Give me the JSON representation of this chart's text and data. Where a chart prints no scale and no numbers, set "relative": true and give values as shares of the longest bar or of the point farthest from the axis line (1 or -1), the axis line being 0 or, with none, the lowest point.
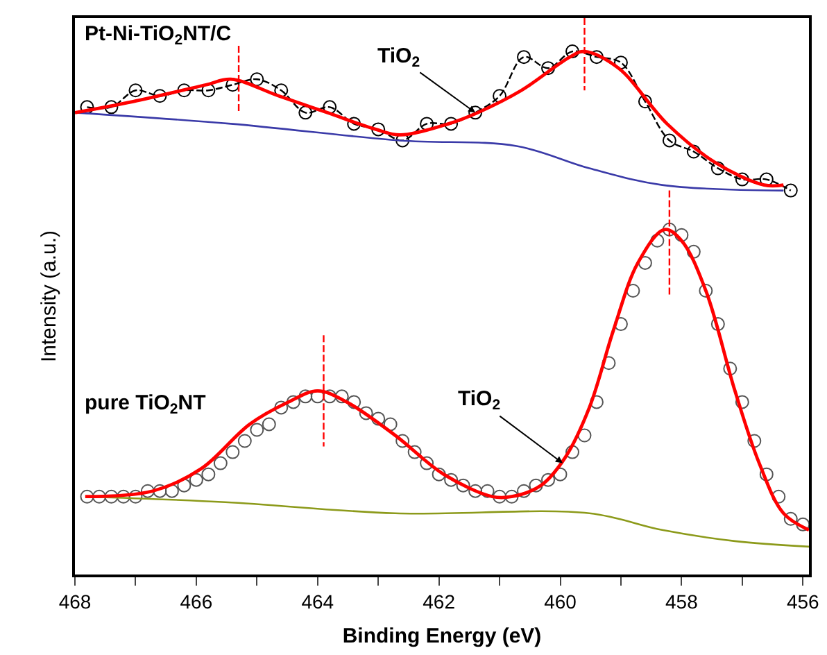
{
  "chart_data": {
    "type": "line",
    "relative": true,
    "xlabel": "Binding Energy (eV)",
    "ylabel": "Intensity (a.u.)",
    "xlim": [
      468,
      455.9
    ],
    "xticks": [
      468,
      {
        "value": 467,
        "label": null
      },
      466,
      {
        "value": 465,
        "label": null
      },
      464,
      {
        "value": 463,
        "label": null
      },
      462,
      {
        "value": 461,
        "label": null
      },
      460,
      {
        "value": 459,
        "label": null
      },
      458,
      {
        "value": 457,
        "label": null
      },
      456
    ],
    "legend": false,
    "series": [
      {
        "name": "Pt-Ni-TiO$_{2}$NT/C",
        "marker": "circle",
        "line_style": "dashed",
        "color": "#000000",
        "x": [
          467.8,
          467.4,
          467.0,
          466.6,
          466.2,
          465.8,
          465.4,
          465.0,
          464.6,
          464.2,
          463.8,
          463.4,
          463.0,
          462.6,
          462.2,
          461.8,
          461.4,
          461.0,
          460.6,
          460.2,
          459.8,
          459.4,
          459.0,
          458.6,
          458.2,
          457.8,
          457.4,
          457.0,
          456.6,
          456.2
        ],
        "values": [
          0.84,
          0.84,
          0.87,
          0.86,
          0.87,
          0.87,
          0.88,
          0.89,
          0.87,
          0.83,
          0.84,
          0.81,
          0.8,
          0.78,
          0.81,
          0.81,
          0.83,
          0.86,
          0.93,
          0.91,
          0.94,
          0.93,
          0.92,
          0.85,
          0.78,
          0.76,
          0.73,
          0.71,
          0.71,
          0.69
        ]
      },
      {
        "marker": "none",
        "line_style": "solid",
        "color": "#3a3aa8",
        "x": [
          468.0,
          465.43,
          462.64,
          460.72,
          459.52,
          458.32,
          456.32
        ],
        "values": [
          0.83,
          0.81,
          0.78,
          0.77,
          0.73,
          0.7,
          0.69
        ]
      },
      {
        "marker": "none",
        "line_style": "solid",
        "color": "#ff0000",
        "x": [
          468.0,
          467.04,
          465.84,
          465.43,
          464.64,
          463.84,
          463.04,
          462.64,
          461.84,
          461.36,
          460.64,
          459.84,
          459.6,
          459.04,
          458.24,
          457.44,
          456.64,
          456.32
        ],
        "values": [
          0.83,
          0.85,
          0.88,
          0.89,
          0.86,
          0.83,
          0.8,
          0.79,
          0.81,
          0.83,
          0.87,
          0.93,
          0.94,
          0.91,
          0.81,
          0.74,
          0.7,
          0.7
        ]
      },
      {
        "name": "pure TiO$_{2}$NT",
        "type": "scatter",
        "marker": "circle",
        "color": "#555555",
        "x": [
          467.8,
          467.6,
          467.4,
          467.2,
          467.0,
          466.8,
          466.6,
          466.4,
          466.2,
          466.0,
          465.8,
          465.6,
          465.4,
          465.2,
          465.0,
          464.8,
          464.6,
          464.4,
          464.2,
          464.0,
          463.8,
          463.6,
          463.4,
          463.2,
          463.0,
          462.8,
          462.6,
          462.4,
          462.2,
          462.0,
          461.8,
          461.6,
          461.4,
          461.2,
          461.0,
          460.8,
          460.6,
          460.4,
          460.2,
          460.0,
          459.8,
          459.6,
          459.4,
          459.2,
          459.0,
          458.8,
          458.6,
          458.4,
          458.2,
          458.0,
          457.8,
          457.6,
          457.4,
          457.2,
          457.0,
          456.8,
          456.6,
          456.4,
          456.2,
          456.0
        ],
        "values": [
          0.14,
          0.14,
          0.14,
          0.14,
          0.14,
          0.15,
          0.15,
          0.15,
          0.16,
          0.17,
          0.18,
          0.2,
          0.22,
          0.24,
          0.26,
          0.27,
          0.3,
          0.31,
          0.32,
          0.32,
          0.32,
          0.32,
          0.31,
          0.29,
          0.28,
          0.27,
          0.24,
          0.22,
          0.2,
          0.18,
          0.17,
          0.16,
          0.15,
          0.15,
          0.14,
          0.14,
          0.15,
          0.16,
          0.17,
          0.18,
          0.22,
          0.25,
          0.31,
          0.38,
          0.45,
          0.51,
          0.56,
          0.6,
          0.62,
          0.61,
          0.58,
          0.51,
          0.45,
          0.37,
          0.31,
          0.24,
          0.18,
          0.14,
          0.1,
          0.09
        ]
      },
      {
        "marker": "none",
        "line_style": "solid",
        "color": "#8c9a1a",
        "x": [
          467.83,
          465.52,
          462.72,
          459.52,
          458.32,
          457.12,
          455.9
        ],
        "values": [
          0.14,
          0.13,
          0.11,
          0.11,
          0.08,
          0.06,
          0.05
        ]
      },
      {
        "marker": "none",
        "line_style": "solid",
        "color": "#ff0000",
        "x": [
          467.83,
          466.72,
          465.92,
          465.12,
          464.48,
          464.0,
          463.52,
          462.72,
          461.92,
          461.12,
          460.8,
          460.32,
          459.92,
          459.52,
          459.12,
          458.72,
          458.28,
          458.0,
          457.6,
          457.12,
          456.72,
          456.32,
          455.9
        ],
        "values": [
          0.14,
          0.15,
          0.19,
          0.27,
          0.31,
          0.33,
          0.31,
          0.25,
          0.18,
          0.14,
          0.14,
          0.16,
          0.21,
          0.3,
          0.44,
          0.56,
          0.62,
          0.6,
          0.51,
          0.33,
          0.2,
          0.11,
          0.08
        ]
      },
      {
        "marker": "none",
        "line_style": "dashed",
        "color": "#ff0000",
        "x": [
          465.3,
          465.3
        ],
        "values": [
          0.95,
          0.83
        ]
      },
      {
        "marker": "none",
        "line_style": "dashed",
        "color": "#ff0000",
        "x": [
          459.6,
          459.6
        ],
        "values": [
          1.0,
          0.87
        ]
      },
      {
        "marker": "none",
        "line_style": "dashed",
        "color": "#ff0000",
        "x": [
          463.9,
          463.9
        ],
        "values": [
          0.43,
          0.23
        ]
      },
      {
        "marker": "none",
        "line_style": "dashed",
        "color": "#ff0000",
        "x": [
          458.2,
          458.2
        ],
        "values": [
          0.69,
          0.5
        ]
      }
    ],
    "annotations": [
      {
        "text": "TiO$_{2}$",
        "x": 461.4,
        "y": 0.83
      },
      {
        "text": "TiO$_{2}$",
        "x": 459.96,
        "y": 0.2
      }
    ]
  }
}
